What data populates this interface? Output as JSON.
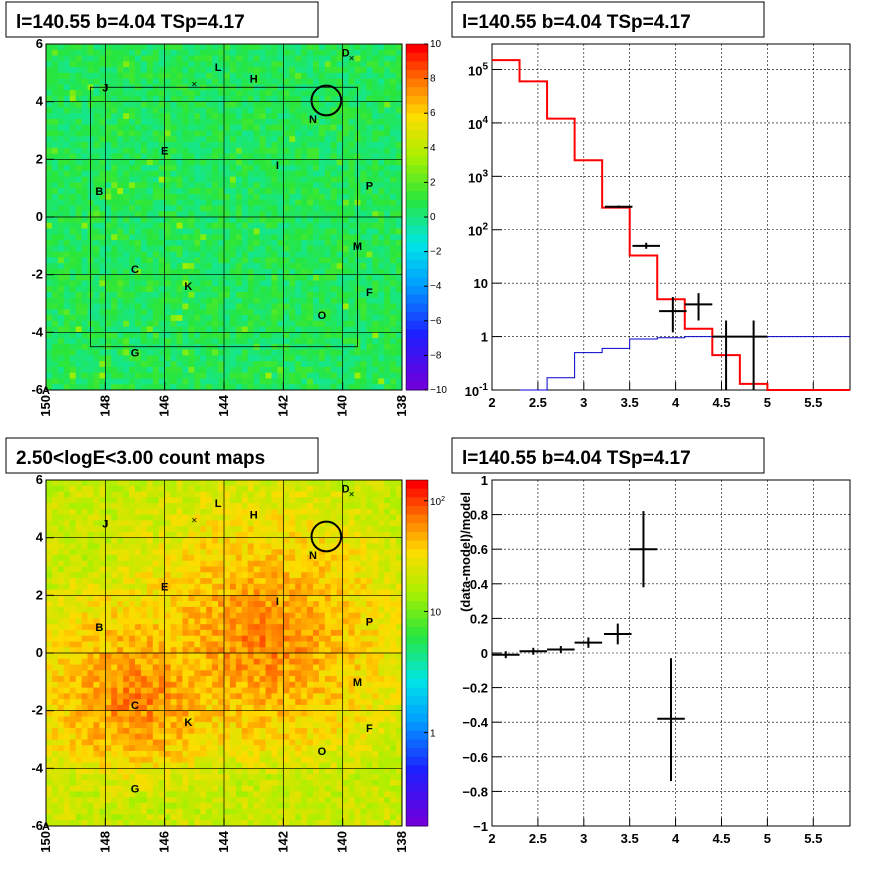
{
  "chart_data": [
    {
      "type": "heatmap",
      "panel": "top-left",
      "title": "l=140.55 b=4.04 TSp=4.17",
      "x_ticks": [
        "150",
        "148",
        "146",
        "144",
        "142",
        "140",
        "138"
      ],
      "y_ticks": [
        "6",
        "4",
        "2",
        "0",
        "-2",
        "-4",
        "-6"
      ],
      "xlim": [
        150,
        138
      ],
      "ylim": [
        -6,
        6
      ],
      "colorbar": {
        "range": [
          -10,
          10
        ],
        "ticks": [
          "10",
          "8",
          "6",
          "4",
          "2",
          "0",
          "−2",
          "−4",
          "−6",
          "−8",
          "−10"
        ]
      },
      "source_labels": [
        {
          "text": "A",
          "l": 150.0,
          "b": -6.0
        },
        {
          "text": "B",
          "l": 148.2,
          "b": 0.9
        },
        {
          "text": "C",
          "l": 147.0,
          "b": -1.8
        },
        {
          "text": "D",
          "l": 139.9,
          "b": 5.7
        },
        {
          "text": "E",
          "l": 146.0,
          "b": 2.3
        },
        {
          "text": "F",
          "l": 139.1,
          "b": -2.6
        },
        {
          "text": "G",
          "l": 147.0,
          "b": -4.7
        },
        {
          "text": "H",
          "l": 143.0,
          "b": 4.8
        },
        {
          "text": "I",
          "l": 142.2,
          "b": 1.8
        },
        {
          "text": "J",
          "l": 148.0,
          "b": 4.5
        },
        {
          "text": "K",
          "l": 145.2,
          "b": -2.4
        },
        {
          "text": "L",
          "l": 144.2,
          "b": 5.2
        },
        {
          "text": "M",
          "l": 139.5,
          "b": -1.0
        },
        {
          "text": "N",
          "l": 141.0,
          "b": 3.4
        },
        {
          "text": "O",
          "l": 140.7,
          "b": -3.4
        },
        {
          "text": "P",
          "l": 139.1,
          "b": 1.1
        }
      ],
      "markers": [
        {
          "l": 145.0,
          "b": 4.6
        },
        {
          "l": 139.7,
          "b": 5.5
        }
      ],
      "circle": {
        "l": 140.55,
        "b": 4.04,
        "r": 0.5
      }
    },
    {
      "type": "line",
      "panel": "top-right",
      "title": "l=140.55 b=4.04 TSp=4.17",
      "x_ticks": [
        "2",
        "2.5",
        "3",
        "3.5",
        "4",
        "4.5",
        "5",
        "5.5"
      ],
      "y_ticks": [
        "10^5",
        "10^4",
        "10^3",
        "10^2",
        "10",
        "1",
        "10^-1"
      ],
      "xlim": [
        2,
        5.9
      ],
      "ylim": [
        0.1,
        300000
      ],
      "yscale": "log",
      "grid": true,
      "series": [
        {
          "color": "#ff0000",
          "values": [
            [
              2.0,
              150000
            ],
            [
              2.3,
              60000
            ],
            [
              2.6,
              12000
            ],
            [
              2.9,
              2000
            ],
            [
              3.2,
              260
            ],
            [
              3.5,
              33
            ],
            [
              3.8,
              5
            ],
            [
              4.1,
              1.4
            ],
            [
              4.4,
              0.45
            ],
            [
              4.7,
              0.13
            ],
            [
              5.0,
              0.1
            ],
            [
              5.9,
              0.1
            ]
          ]
        },
        {
          "color": "#0000cc",
          "values": [
            [
              2.3,
              0.1
            ],
            [
              2.6,
              0.17
            ],
            [
              2.9,
              0.5
            ],
            [
              3.2,
              0.6
            ],
            [
              3.5,
              0.9
            ],
            [
              3.8,
              0.95
            ],
            [
              4.1,
              1.0
            ],
            [
              5.9,
              1.0
            ]
          ]
        }
      ],
      "data_points": [
        {
          "x": 3.38,
          "y": 270,
          "xerr": 0.15,
          "ylo": 255,
          "yhi": 285
        },
        {
          "x": 3.68,
          "y": 50,
          "xerr": 0.15,
          "ylo": 44,
          "yhi": 57
        },
        {
          "x": 3.97,
          "y": 3,
          "xerr": 0.15,
          "ylo": 1.2,
          "yhi": 5.5
        },
        {
          "x": 4.25,
          "y": 4,
          "xerr": 0.15,
          "ylo": 2.0,
          "yhi": 6.5
        },
        {
          "x": 4.55,
          "y": 1,
          "xerr": 0.15,
          "ylo": 0.1,
          "yhi": 2.0
        },
        {
          "x": 4.85,
          "y": 1,
          "xerr": 0.15,
          "ylo": 0.1,
          "yhi": 2.0
        }
      ]
    },
    {
      "type": "heatmap",
      "panel": "bottom-left",
      "title": "2.50<logE<3.00 count maps",
      "x_ticks": [
        "150",
        "148",
        "146",
        "144",
        "142",
        "140",
        "138"
      ],
      "y_ticks": [
        "6",
        "4",
        "2",
        "0",
        "-2",
        "-4",
        "-6"
      ],
      "xlim": [
        150,
        138
      ],
      "ylim": [
        -6,
        6
      ],
      "colorbar": {
        "scale": "log",
        "ticks": [
          "10^2",
          "10",
          "1"
        ]
      }
    },
    {
      "type": "scatter",
      "panel": "bottom-right",
      "title": "l=140.55 b=4.04 TSp=4.17",
      "ylabel": "(data-model)/model",
      "x_ticks": [
        "2",
        "2.5",
        "3",
        "3.5",
        "4",
        "4.5",
        "5",
        "5.5"
      ],
      "y_ticks": [
        "1",
        "0.8",
        "0.6",
        "0.4",
        "0.2",
        "0",
        "−0.2",
        "−0.4",
        "−0.6",
        "−0.8",
        "−1"
      ],
      "xlim": [
        2,
        5.9
      ],
      "ylim": [
        -1,
        1
      ],
      "grid": true,
      "points": [
        {
          "x": 2.15,
          "y": -0.01,
          "xerr": 0.15,
          "ylo": -0.03,
          "yhi": 0.01
        },
        {
          "x": 2.45,
          "y": 0.01,
          "xerr": 0.15,
          "ylo": -0.01,
          "yhi": 0.03
        },
        {
          "x": 2.75,
          "y": 0.02,
          "xerr": 0.15,
          "ylo": 0.0,
          "yhi": 0.04
        },
        {
          "x": 3.05,
          "y": 0.06,
          "xerr": 0.15,
          "ylo": 0.03,
          "yhi": 0.09
        },
        {
          "x": 3.37,
          "y": 0.11,
          "xerr": 0.15,
          "ylo": 0.05,
          "yhi": 0.17
        },
        {
          "x": 3.65,
          "y": 0.6,
          "xerr": 0.15,
          "ylo": 0.38,
          "yhi": 0.82
        },
        {
          "x": 3.95,
          "y": -0.38,
          "xerr": 0.15,
          "ylo": -0.74,
          "yhi": -0.03
        }
      ]
    }
  ]
}
